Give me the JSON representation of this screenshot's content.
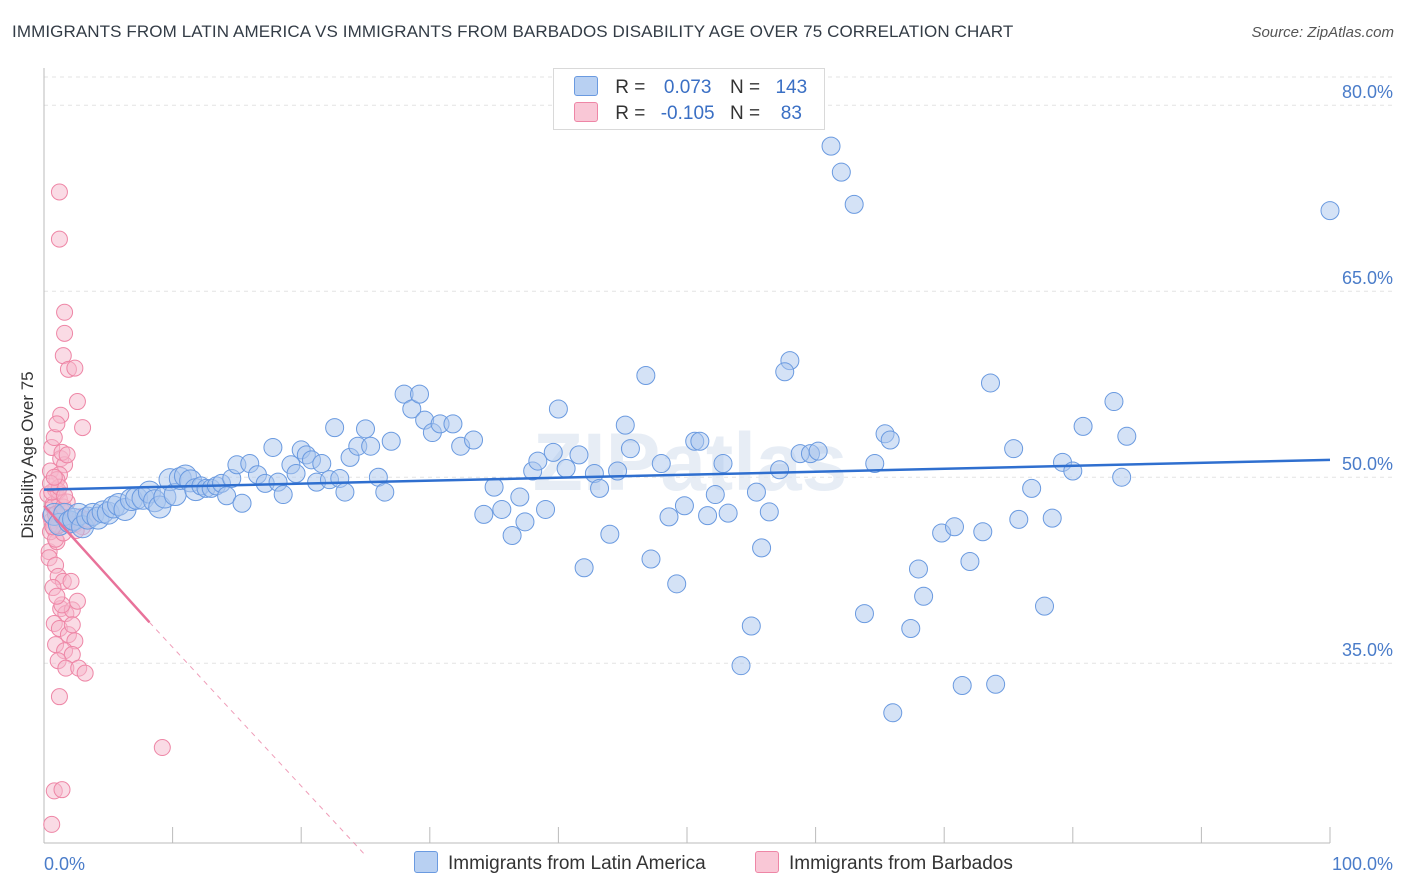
{
  "title": "IMMIGRANTS FROM LATIN AMERICA VS IMMIGRANTS FROM BARBADOS DISABILITY AGE OVER 75 CORRELATION CHART",
  "source": "Source: ZipAtlas.com",
  "watermark": "ZIPatlas",
  "legend": {
    "rows": [
      {
        "r_label": "R =",
        "r_value": "0.073",
        "n_label": "N =",
        "n_value": "143"
      },
      {
        "r_label": "R =",
        "r_value": "-0.105",
        "n_label": "N =",
        "n_value": "83"
      }
    ]
  },
  "colors": {
    "blue_fill": "#a9c6ee",
    "blue_stroke": "#6a9ae0",
    "blue_line": "#2f6fcf",
    "pink_fill": "#f6b8cb",
    "pink_stroke": "#ee86a6",
    "pink_line": "#e8729a",
    "tick_text": "#4a7cc9",
    "grid": "#e3e3e3"
  },
  "chart_data": {
    "type": "scatter",
    "title": "IMMIGRANTS FROM LATIN AMERICA VS IMMIGRANTS FROM BARBADOS DISABILITY AGE OVER 75 CORRELATION CHART",
    "xlabel": "",
    "ylabel": "Disability Age Over 75",
    "xlim": [
      0,
      100
    ],
    "ylim": [
      20.5,
      83
    ],
    "x_tick_labels": [
      "0.0%",
      "100.0%"
    ],
    "y_ticks": [
      35,
      50,
      65,
      80
    ],
    "y_tick_labels": [
      "35.0%",
      "50.0%",
      "65.0%",
      "80.0%"
    ],
    "grid": true,
    "legend_position": "bottom",
    "series": [
      {
        "name": "Immigrants from Latin America",
        "color": "#a9c6ee",
        "trend": {
          "x": [
            0,
            100
          ],
          "y": [
            49.0,
            51.4
          ]
        },
        "points": [
          [
            0.8,
            47.0
          ],
          [
            1.2,
            46.2
          ],
          [
            1.6,
            47.0
          ],
          [
            2.0,
            46.4
          ],
          [
            2.3,
            46.6
          ],
          [
            2.7,
            47.0
          ],
          [
            3.0,
            46.0
          ],
          [
            3.4,
            46.7
          ],
          [
            3.8,
            47.0
          ],
          [
            4.2,
            46.7
          ],
          [
            4.6,
            47.2
          ],
          [
            5.0,
            47.1
          ],
          [
            5.4,
            47.6
          ],
          [
            5.8,
            47.8
          ],
          [
            6.3,
            47.4
          ],
          [
            6.8,
            48.2
          ],
          [
            7.2,
            48.3
          ],
          [
            7.7,
            48.3
          ],
          [
            8.2,
            48.8
          ],
          [
            8.6,
            48.1
          ],
          [
            9.0,
            47.6
          ],
          [
            9.4,
            48.4
          ],
          [
            9.8,
            49.8
          ],
          [
            10.2,
            48.6
          ],
          [
            10.6,
            49.9
          ],
          [
            11.0,
            50.1
          ],
          [
            11.4,
            49.7
          ],
          [
            11.8,
            49.0
          ],
          [
            12.2,
            49.3
          ],
          [
            12.6,
            49.1
          ],
          [
            13.0,
            49.1
          ],
          [
            13.4,
            49.3
          ],
          [
            13.8,
            49.5
          ],
          [
            14.2,
            48.5
          ],
          [
            14.6,
            49.9
          ],
          [
            15.0,
            51.0
          ],
          [
            15.4,
            47.9
          ],
          [
            16.0,
            51.1
          ],
          [
            16.6,
            50.2
          ],
          [
            17.2,
            49.5
          ],
          [
            17.8,
            52.4
          ],
          [
            18.2,
            49.6
          ],
          [
            18.6,
            48.6
          ],
          [
            19.2,
            51.0
          ],
          [
            19.6,
            50.3
          ],
          [
            20.0,
            52.2
          ],
          [
            20.4,
            51.8
          ],
          [
            20.8,
            51.4
          ],
          [
            21.2,
            49.6
          ],
          [
            21.6,
            51.1
          ],
          [
            22.2,
            49.8
          ],
          [
            22.6,
            54.0
          ],
          [
            23.0,
            49.9
          ],
          [
            23.4,
            48.8
          ],
          [
            23.8,
            51.6
          ],
          [
            24.4,
            52.5
          ],
          [
            25.0,
            53.9
          ],
          [
            25.4,
            52.5
          ],
          [
            26.0,
            50.0
          ],
          [
            26.5,
            48.8
          ],
          [
            27.0,
            52.9
          ],
          [
            28.0,
            56.7
          ],
          [
            28.6,
            55.5
          ],
          [
            29.2,
            56.7
          ],
          [
            29.6,
            54.6
          ],
          [
            30.2,
            53.6
          ],
          [
            30.8,
            54.3
          ],
          [
            31.8,
            54.3
          ],
          [
            32.4,
            52.5
          ],
          [
            33.4,
            53.0
          ],
          [
            34.2,
            47.0
          ],
          [
            35.0,
            49.2
          ],
          [
            35.6,
            47.4
          ],
          [
            36.4,
            45.3
          ],
          [
            37.0,
            48.4
          ],
          [
            37.4,
            46.4
          ],
          [
            38.0,
            50.5
          ],
          [
            38.4,
            51.3
          ],
          [
            39.0,
            47.4
          ],
          [
            39.6,
            52.0
          ],
          [
            40.0,
            55.5
          ],
          [
            40.6,
            50.7
          ],
          [
            41.6,
            51.8
          ],
          [
            42.0,
            42.7
          ],
          [
            42.8,
            50.3
          ],
          [
            43.2,
            49.1
          ],
          [
            44.0,
            45.4
          ],
          [
            44.6,
            50.5
          ],
          [
            45.2,
            54.2
          ],
          [
            45.6,
            52.3
          ],
          [
            46.8,
            58.2
          ],
          [
            47.2,
            43.4
          ],
          [
            48.0,
            51.1
          ],
          [
            48.6,
            46.8
          ],
          [
            49.2,
            41.4
          ],
          [
            49.8,
            47.7
          ],
          [
            50.6,
            52.9
          ],
          [
            51.0,
            52.9
          ],
          [
            51.6,
            46.9
          ],
          [
            52.2,
            48.6
          ],
          [
            52.8,
            51.1
          ],
          [
            53.2,
            47.1
          ],
          [
            54.2,
            34.8
          ],
          [
            55.0,
            38.0
          ],
          [
            55.4,
            48.8
          ],
          [
            55.8,
            44.3
          ],
          [
            56.4,
            47.2
          ],
          [
            57.2,
            50.6
          ],
          [
            58.0,
            59.4
          ],
          [
            57.6,
            58.5
          ],
          [
            58.8,
            51.9
          ],
          [
            59.6,
            51.9
          ],
          [
            60.2,
            52.1
          ],
          [
            61.2,
            76.7
          ],
          [
            62.0,
            74.6
          ],
          [
            63.0,
            72.0
          ],
          [
            63.8,
            39.0
          ],
          [
            64.6,
            51.1
          ],
          [
            65.4,
            53.5
          ],
          [
            65.8,
            53.0
          ],
          [
            66.0,
            31.0
          ],
          [
            67.4,
            37.8
          ],
          [
            68.0,
            42.6
          ],
          [
            68.4,
            40.4
          ],
          [
            69.8,
            45.5
          ],
          [
            70.8,
            46.0
          ],
          [
            71.4,
            33.2
          ],
          [
            72.0,
            43.2
          ],
          [
            73.0,
            45.6
          ],
          [
            73.6,
            57.6
          ],
          [
            74.0,
            33.3
          ],
          [
            75.4,
            52.3
          ],
          [
            75.8,
            46.6
          ],
          [
            76.8,
            49.1
          ],
          [
            77.8,
            39.6
          ],
          [
            78.4,
            46.7
          ],
          [
            79.2,
            51.2
          ],
          [
            80.0,
            50.5
          ],
          [
            80.8,
            54.1
          ],
          [
            83.2,
            56.1
          ],
          [
            83.8,
            50.0
          ],
          [
            84.2,
            53.3
          ],
          [
            100.0,
            71.5
          ]
        ]
      },
      {
        "name": "Immigrants from Barbados",
        "color": "#f6b8cb",
        "trend": {
          "x": [
            0,
            8.2
          ],
          "y": [
            47.7,
            38.3
          ]
        },
        "trend_dashed_to": {
          "x": 25.0,
          "y": 19.5
        },
        "points": [
          [
            0.3,
            48.6
          ],
          [
            0.5,
            50.5
          ],
          [
            0.7,
            47.8
          ],
          [
            0.9,
            49.0
          ],
          [
            0.6,
            46.5
          ],
          [
            0.8,
            45.8
          ],
          [
            1.0,
            47.1
          ],
          [
            1.2,
            48.2
          ],
          [
            0.4,
            44.0
          ],
          [
            1.0,
            44.8
          ],
          [
            0.6,
            52.4
          ],
          [
            1.3,
            51.5
          ],
          [
            1.6,
            51.0
          ],
          [
            0.8,
            53.2
          ],
          [
            1.2,
            50.2
          ],
          [
            1.0,
            49.8
          ],
          [
            0.7,
            47.6
          ],
          [
            1.4,
            46.8
          ],
          [
            1.8,
            46.3
          ],
          [
            0.5,
            45.6
          ],
          [
            0.9,
            45.0
          ],
          [
            1.5,
            45.5
          ],
          [
            0.4,
            43.5
          ],
          [
            0.9,
            42.9
          ],
          [
            1.1,
            42.0
          ],
          [
            1.5,
            41.6
          ],
          [
            2.1,
            41.6
          ],
          [
            0.7,
            41.1
          ],
          [
            1.3,
            39.4
          ],
          [
            1.7,
            39.0
          ],
          [
            2.2,
            39.3
          ],
          [
            2.6,
            40.0
          ],
          [
            0.8,
            38.2
          ],
          [
            1.2,
            37.8
          ],
          [
            1.9,
            37.3
          ],
          [
            2.4,
            36.8
          ],
          [
            0.9,
            36.5
          ],
          [
            1.6,
            36.0
          ],
          [
            2.2,
            35.7
          ],
          [
            1.1,
            35.2
          ],
          [
            1.7,
            34.6
          ],
          [
            2.7,
            34.6
          ],
          [
            3.2,
            34.2
          ],
          [
            1.2,
            32.3
          ],
          [
            0.8,
            24.7
          ],
          [
            1.4,
            24.8
          ],
          [
            0.6,
            22.0
          ],
          [
            1.2,
            73.0
          ],
          [
            1.2,
            69.2
          ],
          [
            1.6,
            63.3
          ],
          [
            1.6,
            61.6
          ],
          [
            1.5,
            59.8
          ],
          [
            1.9,
            58.7
          ],
          [
            2.4,
            58.8
          ],
          [
            2.6,
            56.1
          ],
          [
            1.3,
            55.0
          ],
          [
            3.0,
            54.0
          ],
          [
            1.0,
            54.3
          ],
          [
            1.4,
            52.0
          ],
          [
            1.8,
            51.8
          ],
          [
            2.0,
            46.5
          ],
          [
            2.8,
            46.8
          ],
          [
            3.4,
            46.6
          ],
          [
            1.1,
            48.9
          ],
          [
            0.5,
            46.9
          ],
          [
            0.9,
            47.0
          ],
          [
            1.4,
            47.3
          ],
          [
            1.1,
            46.1
          ],
          [
            0.7,
            46.0
          ],
          [
            1.5,
            47.6
          ],
          [
            0.6,
            48.8
          ],
          [
            2.4,
            46.2
          ],
          [
            3.0,
            46.0
          ],
          [
            1.8,
            48.0
          ],
          [
            1.2,
            49.2
          ],
          [
            0.5,
            49.5
          ],
          [
            2.2,
            38.1
          ],
          [
            1.4,
            39.7
          ],
          [
            1.0,
            40.4
          ],
          [
            2.5,
            45.7
          ],
          [
            0.8,
            50.0
          ],
          [
            1.6,
            48.5
          ],
          [
            9.2,
            28.2
          ]
        ]
      }
    ]
  }
}
